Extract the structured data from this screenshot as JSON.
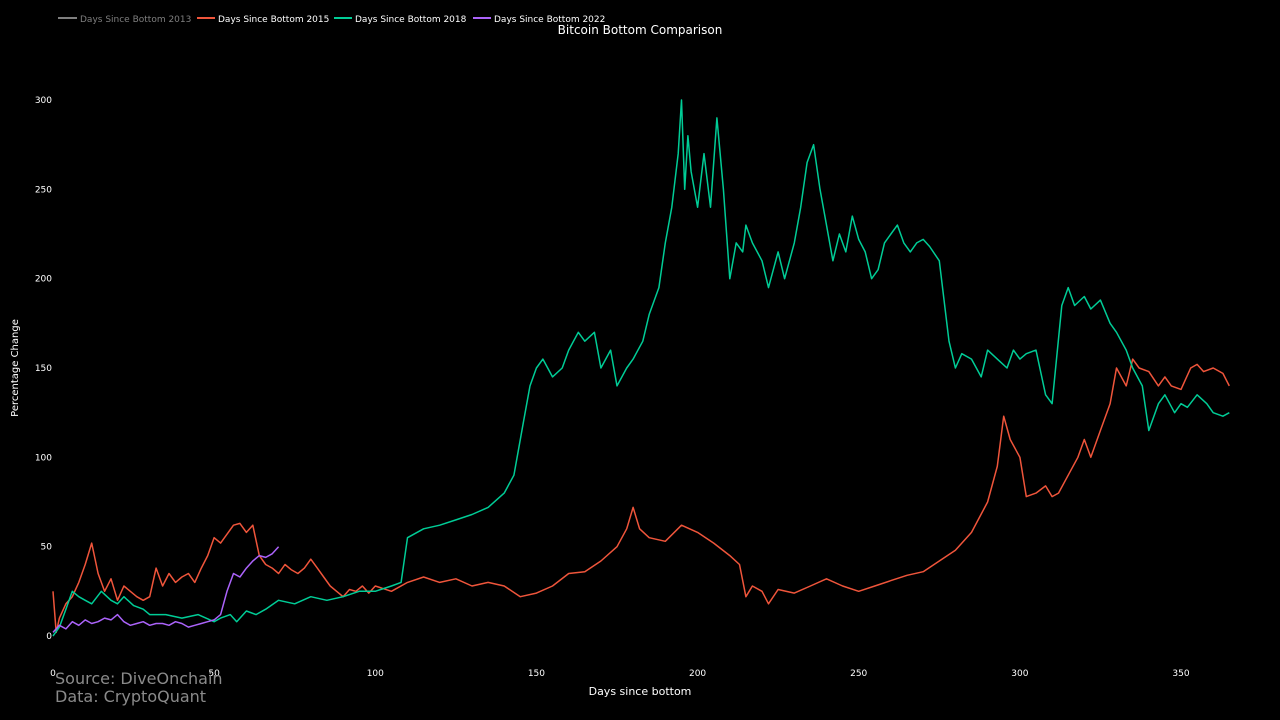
{
  "footer": {
    "source": "Source: DiveOnchain",
    "data": "Data: CryptoQuant"
  },
  "chart_data": {
    "type": "line",
    "title": "Bitcoin Bottom Comparison",
    "xlabel": "Days since bottom",
    "ylabel": "Percentage Change",
    "xlim": [
      0,
      365
    ],
    "ylim": [
      -10,
      320
    ],
    "xticks": [
      0,
      50,
      100,
      150,
      200,
      250,
      300,
      350
    ],
    "yticks": [
      0,
      50,
      100,
      150,
      200,
      250,
      300
    ],
    "grid": false,
    "legend_position": "top-left",
    "background": "#000000",
    "series": [
      {
        "name": "Days Since Bottom 2013",
        "color": "#7f7f7f",
        "x": [],
        "y": []
      },
      {
        "name": "Days Since Bottom 2015",
        "color": "#ef553b",
        "x": [
          0,
          1,
          2,
          4,
          6,
          8,
          10,
          12,
          14,
          16,
          18,
          20,
          22,
          24,
          26,
          28,
          30,
          32,
          34,
          36,
          38,
          40,
          42,
          44,
          46,
          48,
          50,
          52,
          54,
          56,
          58,
          60,
          62,
          64,
          66,
          68,
          70,
          72,
          74,
          76,
          78,
          80,
          82,
          84,
          86,
          88,
          90,
          92,
          94,
          96,
          98,
          100,
          105,
          110,
          115,
          120,
          125,
          130,
          135,
          140,
          145,
          150,
          155,
          160,
          165,
          170,
          175,
          178,
          180,
          182,
          185,
          190,
          195,
          200,
          205,
          210,
          213,
          215,
          217,
          220,
          222,
          225,
          230,
          235,
          240,
          245,
          250,
          255,
          260,
          265,
          270,
          275,
          280,
          285,
          290,
          293,
          295,
          297,
          300,
          302,
          305,
          308,
          310,
          312,
          315,
          318,
          320,
          322,
          325,
          328,
          330,
          333,
          335,
          337,
          340,
          343,
          345,
          347,
          350,
          353,
          355,
          357,
          360,
          363,
          365
        ],
        "y": [
          25,
          2,
          10,
          18,
          22,
          30,
          40,
          52,
          35,
          25,
          32,
          20,
          28,
          25,
          22,
          20,
          22,
          38,
          28,
          35,
          30,
          33,
          35,
          30,
          38,
          45,
          55,
          52,
          57,
          62,
          63,
          58,
          62,
          45,
          40,
          38,
          35,
          40,
          37,
          35,
          38,
          43,
          38,
          33,
          28,
          25,
          22,
          26,
          25,
          28,
          24,
          28,
          25,
          30,
          33,
          30,
          32,
          28,
          30,
          28,
          22,
          24,
          28,
          35,
          36,
          42,
          50,
          60,
          72,
          60,
          55,
          53,
          62,
          58,
          52,
          45,
          40,
          22,
          28,
          25,
          18,
          26,
          24,
          28,
          32,
          28,
          25,
          28,
          31,
          34,
          36,
          42,
          48,
          58,
          75,
          95,
          123,
          110,
          100,
          78,
          80,
          84,
          78,
          80,
          90,
          100,
          110,
          100,
          115,
          130,
          150,
          140,
          155,
          150,
          148,
          140,
          145,
          140,
          138,
          150,
          152,
          148,
          150,
          147,
          140
        ]
      },
      {
        "name": "Days Since Bottom 2018",
        "color": "#00cc96",
        "x": [
          0,
          2,
          4,
          6,
          8,
          10,
          12,
          15,
          18,
          20,
          22,
          25,
          28,
          30,
          35,
          40,
          45,
          50,
          52,
          55,
          57,
          60,
          63,
          66,
          70,
          75,
          80,
          85,
          90,
          95,
          100,
          105,
          108,
          110,
          115,
          120,
          125,
          130,
          135,
          140,
          143,
          146,
          148,
          150,
          152,
          155,
          158,
          160,
          163,
          165,
          168,
          170,
          173,
          175,
          178,
          180,
          183,
          185,
          188,
          190,
          192,
          194,
          195,
          196,
          197,
          198,
          200,
          202,
          204,
          206,
          208,
          210,
          212,
          214,
          215,
          217,
          220,
          222,
          225,
          227,
          230,
          232,
          234,
          236,
          238,
          240,
          242,
          244,
          246,
          248,
          250,
          252,
          254,
          256,
          258,
          260,
          262,
          264,
          266,
          268,
          270,
          272,
          275,
          278,
          280,
          282,
          285,
          288,
          290,
          293,
          296,
          298,
          300,
          302,
          305,
          308,
          310,
          313,
          315,
          317,
          320,
          322,
          325,
          328,
          330,
          333,
          335,
          338,
          340,
          343,
          345,
          348,
          350,
          352,
          355,
          358,
          360,
          363,
          365
        ],
        "y": [
          0,
          5,
          15,
          25,
          22,
          20,
          18,
          25,
          20,
          18,
          22,
          17,
          15,
          12,
          12,
          10,
          12,
          8,
          10,
          12,
          8,
          14,
          12,
          15,
          20,
          18,
          22,
          20,
          22,
          25,
          25,
          28,
          30,
          55,
          60,
          62,
          65,
          68,
          72,
          80,
          90,
          120,
          140,
          150,
          155,
          145,
          150,
          160,
          170,
          165,
          170,
          150,
          160,
          140,
          150,
          155,
          165,
          180,
          195,
          220,
          240,
          270,
          300,
          250,
          280,
          260,
          240,
          270,
          240,
          290,
          250,
          200,
          220,
          215,
          230,
          220,
          210,
          195,
          215,
          200,
          220,
          240,
          265,
          275,
          250,
          230,
          210,
          225,
          215,
          235,
          222,
          215,
          200,
          205,
          220,
          225,
          230,
          220,
          215,
          220,
          222,
          218,
          210,
          165,
          150,
          158,
          155,
          145,
          160,
          155,
          150,
          160,
          155,
          158,
          160,
          135,
          130,
          185,
          195,
          185,
          190,
          183,
          188,
          175,
          170,
          160,
          150,
          140,
          115,
          130,
          135,
          125,
          130,
          128,
          135,
          130,
          125,
          123,
          125
        ]
      },
      {
        "name": "Days Since Bottom 2022",
        "color": "#ab63fa",
        "x": [
          0,
          2,
          4,
          6,
          8,
          10,
          12,
          14,
          16,
          18,
          20,
          22,
          24,
          26,
          28,
          30,
          32,
          34,
          36,
          38,
          40,
          42,
          44,
          46,
          48,
          50,
          52,
          54,
          56,
          58,
          60,
          62,
          64,
          66,
          68,
          70
        ],
        "y": [
          2,
          6,
          4,
          8,
          6,
          9,
          7,
          8,
          10,
          9,
          12,
          8,
          6,
          7,
          8,
          6,
          7,
          7,
          6,
          8,
          7,
          5,
          6,
          7,
          8,
          9,
          12,
          25,
          35,
          33,
          38,
          42,
          45,
          44,
          46,
          50
        ]
      }
    ]
  }
}
